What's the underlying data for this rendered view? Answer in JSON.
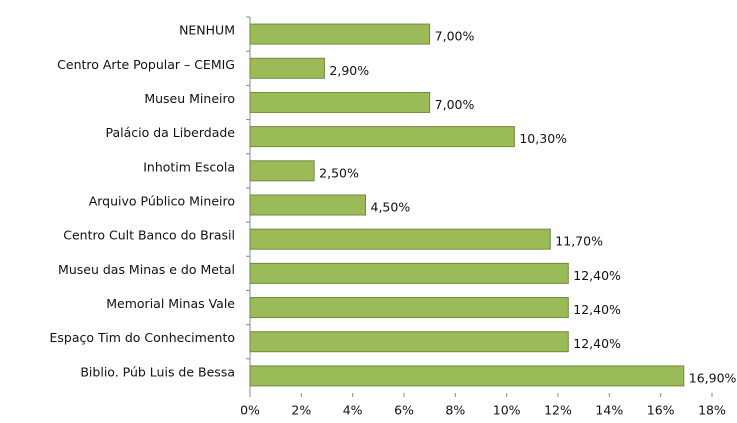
{
  "chart_data": {
    "type": "bar",
    "orientation": "horizontal",
    "categories": [
      "NENHUM",
      "Centro Arte Popular – CEMIG",
      "Museu Mineiro",
      "Palácio da Liberdade",
      "Inhotim Escola",
      "Arquivo Público Mineiro",
      "Centro Cult Banco do Brasil",
      "Museu das Minas e do Metal",
      "Memorial Minas Vale",
      "Espaço Tim do Conhecimento",
      "Biblio. Púb Luis de Bessa"
    ],
    "values": [
      7,
      2.9,
      7,
      10.3,
      2.5,
      4.5,
      11.7,
      12.4,
      12.4,
      12.4,
      16.9
    ],
    "value_labels": [
      "7,00%",
      "2,90%",
      "7,00%",
      "10,30%",
      "2,50%",
      "4,50%",
      "11,70%",
      "12,40%",
      "12,40%",
      "12,40%",
      "16,90%"
    ],
    "color": "#9bbb59",
    "xlim": [
      0,
      18
    ],
    "xticks": [
      {
        "value": 0,
        "label": "0%"
      },
      {
        "value": 2,
        "label": "2%"
      },
      {
        "value": 4,
        "label": "4%"
      },
      {
        "value": 6,
        "label": "6%"
      },
      {
        "value": 8,
        "label": "8%"
      },
      {
        "value": 10,
        "label": "10%"
      },
      {
        "value": 12,
        "label": "12%"
      },
      {
        "value": 14,
        "label": "14%"
      },
      {
        "value": 16,
        "label": "16%"
      },
      {
        "value": 18,
        "label": "18%"
      }
    ],
    "grid": false
  }
}
